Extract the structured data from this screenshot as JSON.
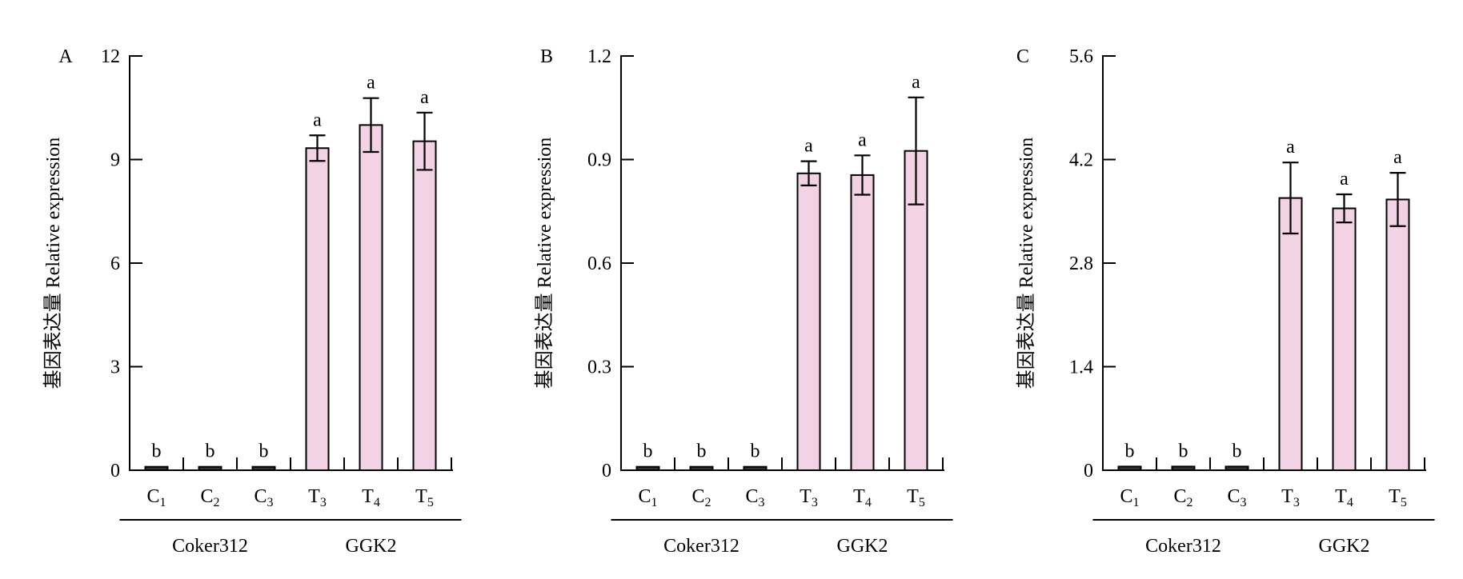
{
  "chart_data": [
    {
      "panel_label": "A",
      "type": "bar",
      "ylabel": "基因表达量 Relative expression",
      "ylim": [
        0,
        12
      ],
      "yticks": [
        "0",
        "3",
        "6",
        "9",
        "12"
      ],
      "categories": [
        {
          "base": "C",
          "sub": "1"
        },
        {
          "base": "C",
          "sub": "2"
        },
        {
          "base": "C",
          "sub": "3"
        },
        {
          "base": "T",
          "sub": "3"
        },
        {
          "base": "T",
          "sub": "4"
        },
        {
          "base": "T",
          "sub": "5"
        }
      ],
      "values": [
        0.1,
        0.1,
        0.1,
        9.33,
        10.0,
        9.53
      ],
      "errors": [
        0,
        0,
        0,
        0.37,
        0.78,
        0.83
      ],
      "significance": [
        "b",
        "b",
        "b",
        "a",
        "a",
        "a"
      ],
      "groups": [
        {
          "label": "Coker312",
          "start": 0,
          "end": 2
        },
        {
          "label": "GGK2",
          "start": 3,
          "end": 5
        }
      ],
      "bar_colors": [
        "#333333",
        "#333333",
        "#333333",
        "#f2d2e4",
        "#f2d2e4",
        "#f2d2e4"
      ]
    },
    {
      "panel_label": "B",
      "type": "bar",
      "ylabel": "基因表达量 Relative expression",
      "ylim": [
        0,
        1.2
      ],
      "yticks": [
        "0",
        "0.3",
        "0.6",
        "0.9",
        "1.2"
      ],
      "categories": [
        {
          "base": "C",
          "sub": "1"
        },
        {
          "base": "C",
          "sub": "2"
        },
        {
          "base": "C",
          "sub": "3"
        },
        {
          "base": "T",
          "sub": "3"
        },
        {
          "base": "T",
          "sub": "4"
        },
        {
          "base": "T",
          "sub": "5"
        }
      ],
      "values": [
        0.01,
        0.01,
        0.01,
        0.86,
        0.855,
        0.925
      ],
      "errors": [
        0,
        0,
        0,
        0.035,
        0.057,
        0.155
      ],
      "significance": [
        "b",
        "b",
        "b",
        "a",
        "a",
        "a"
      ],
      "groups": [
        {
          "label": "Coker312",
          "start": 0,
          "end": 2
        },
        {
          "label": "GGK2",
          "start": 3,
          "end": 5
        }
      ],
      "bar_colors": [
        "#333333",
        "#333333",
        "#333333",
        "#f2d2e4",
        "#f2d2e4",
        "#f2d2e4"
      ]
    },
    {
      "panel_label": "C",
      "type": "bar",
      "ylabel": "基因表达量 Relative expression",
      "ylim": [
        0,
        5.6
      ],
      "yticks": [
        "0",
        "1.4",
        "2.8",
        "4.2",
        "5.6"
      ],
      "categories": [
        {
          "base": "C",
          "sub": "1"
        },
        {
          "base": "C",
          "sub": "2"
        },
        {
          "base": "C",
          "sub": "3"
        },
        {
          "base": "T",
          "sub": "3"
        },
        {
          "base": "T",
          "sub": "4"
        },
        {
          "base": "T",
          "sub": "5"
        }
      ],
      "values": [
        0.05,
        0.05,
        0.05,
        3.68,
        3.54,
        3.66
      ],
      "errors": [
        0,
        0,
        0,
        0.48,
        0.19,
        0.36
      ],
      "significance": [
        "b",
        "b",
        "b",
        "a",
        "a",
        "a"
      ],
      "groups": [
        {
          "label": "Coker312",
          "start": 0,
          "end": 2
        },
        {
          "label": "GGK2",
          "start": 3,
          "end": 5
        }
      ],
      "bar_colors": [
        "#333333",
        "#333333",
        "#333333",
        "#f2d2e4",
        "#f2d2e4",
        "#f2d2e4"
      ]
    }
  ]
}
